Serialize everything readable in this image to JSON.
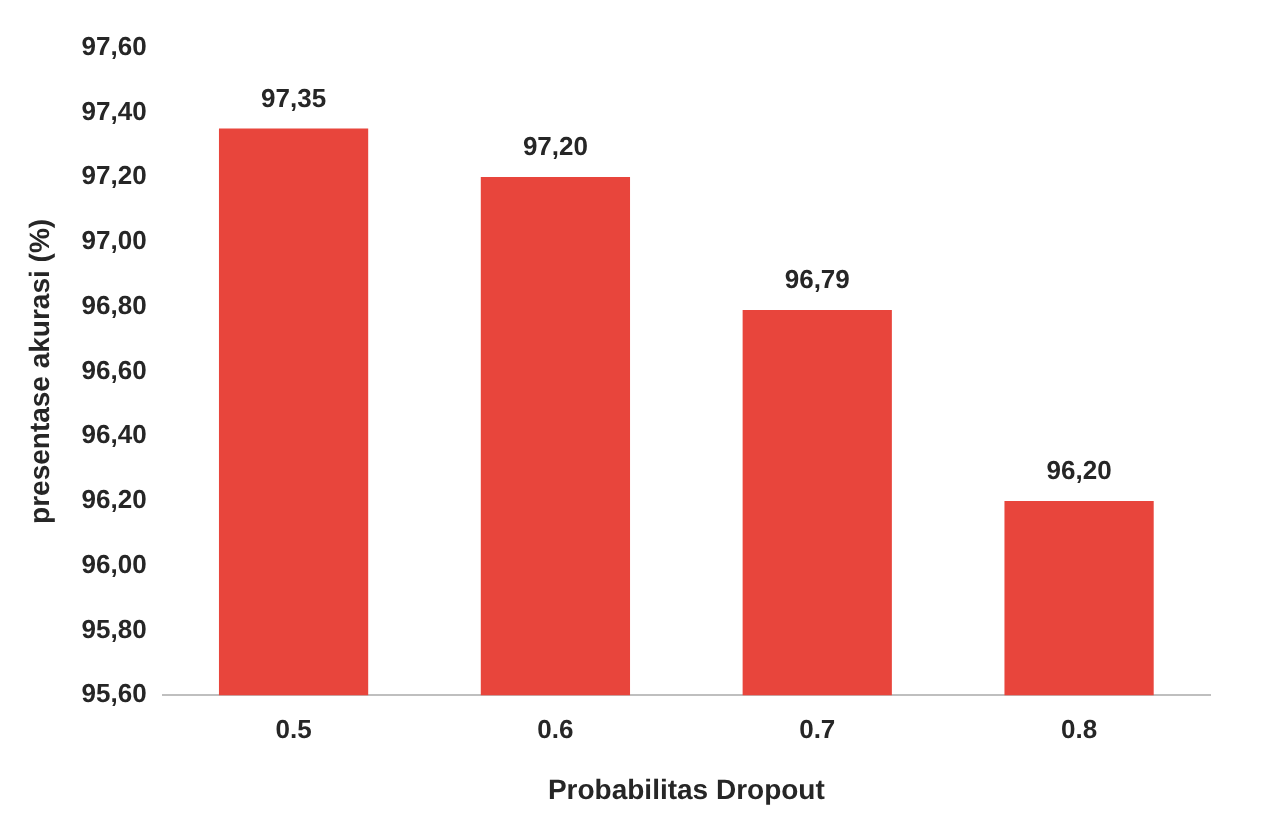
{
  "chart_data": {
    "type": "bar",
    "xlabel": "Probabilitas Dropout",
    "ylabel": "presentase akurasi (%)",
    "categories": [
      "0.5",
      "0.6",
      "0.7",
      "0.8"
    ],
    "values": [
      97.35,
      97.2,
      96.79,
      96.2
    ],
    "value_labels": [
      "97,35",
      "97,20",
      "96,79",
      "96,20"
    ],
    "color": "#e8453c",
    "ylim": [
      95.6,
      97.6
    ],
    "yticks": [
      {
        "value": 95.6,
        "label": "95,60"
      },
      {
        "value": 95.8,
        "label": "95,80"
      },
      {
        "value": 96.0,
        "label": "96,00"
      },
      {
        "value": 96.2,
        "label": "96,20"
      },
      {
        "value": 96.4,
        "label": "96,40"
      },
      {
        "value": 96.6,
        "label": "96,60"
      },
      {
        "value": 96.8,
        "label": "96,80"
      },
      {
        "value": 97.0,
        "label": "97,00"
      },
      {
        "value": 97.2,
        "label": "97,20"
      },
      {
        "value": 97.4,
        "label": "97,40"
      },
      {
        "value": 97.6,
        "label": "97,60"
      }
    ],
    "grid": false,
    "legend": false
  }
}
